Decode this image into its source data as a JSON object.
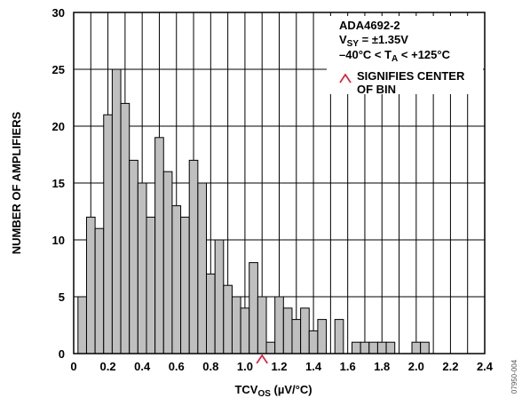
{
  "chart_data": {
    "type": "bar",
    "xlabel": {
      "main": "TCV",
      "sub": "OS",
      "rest": " (µV/°C)"
    },
    "ylabel": "NUMBER OF AMPLIFIERS",
    "xlim": [
      0,
      2.4
    ],
    "ylim": [
      0,
      30
    ],
    "bin_width": 0.05,
    "x_ticks": [
      "0",
      "0.2",
      "0.4",
      "0.6",
      "0.8",
      "1.0",
      "1.2",
      "1.4",
      "1.6",
      "1.8",
      "2.0",
      "2.2",
      "2.4"
    ],
    "y_ticks": [
      "0",
      "5",
      "10",
      "15",
      "20",
      "25",
      "30"
    ],
    "grid": true,
    "bin_centers": [
      0.05,
      0.1,
      0.15,
      0.2,
      0.25,
      0.3,
      0.35,
      0.4,
      0.45,
      0.5,
      0.55,
      0.6,
      0.65,
      0.7,
      0.75,
      0.8,
      0.85,
      0.9,
      0.95,
      1.0,
      1.05,
      1.1,
      1.15,
      1.2,
      1.25,
      1.3,
      1.35,
      1.4,
      1.45,
      1.5,
      1.55,
      1.6,
      1.65,
      1.7,
      1.75,
      1.8,
      1.85,
      1.9,
      1.95,
      2.0,
      2.05
    ],
    "values": [
      5,
      12,
      11,
      21,
      25,
      22,
      17,
      15,
      12,
      19,
      16,
      13,
      12,
      17,
      15,
      7,
      10,
      6,
      5,
      4,
      8,
      5,
      1,
      5,
      4,
      3,
      4,
      2,
      3,
      0,
      3,
      0,
      1,
      1,
      1,
      1,
      1,
      0,
      0,
      1,
      1
    ],
    "bar_color": "#bfbfbf",
    "marker_color": "#e0193a",
    "marker_x": 1.1,
    "legend_position": "top-right",
    "annotation": {
      "line1": "ADA4692-2",
      "line2_main": "V",
      "line2_sub": "SY",
      "line2_rest": " = ±1.35V",
      "line3_a": "–40°C < T",
      "line3_sub": "A",
      "line3_b": " < +125°C",
      "line4": "SIGNIFIES CENTER",
      "line5": "OF BIN"
    },
    "figure_id": "07950-004"
  }
}
